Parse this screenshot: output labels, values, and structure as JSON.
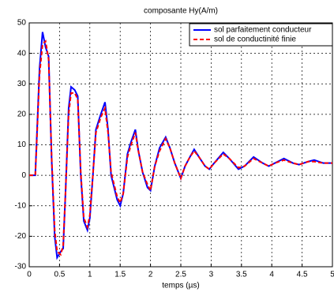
{
  "chart_data": {
    "type": "line",
    "title": "composante Hy(A/m)",
    "x_label": "temps (µs)",
    "x": [
      0,
      0.05,
      0.1,
      0.12,
      0.17,
      0.22,
      0.27,
      0.32,
      0.37,
      0.42,
      0.46,
      0.52,
      0.56,
      0.6,
      0.65,
      0.69,
      0.75,
      0.8,
      0.85,
      0.9,
      0.96,
      1.0,
      1.05,
      1.1,
      1.18,
      1.25,
      1.3,
      1.35,
      1.45,
      1.5,
      1.55,
      1.62,
      1.68,
      1.75,
      1.8,
      1.87,
      1.95,
      2.0,
      2.07,
      2.15,
      2.25,
      2.32,
      2.4,
      2.5,
      2.57,
      2.65,
      2.72,
      2.8,
      2.9,
      2.97,
      3.05,
      3.2,
      3.3,
      3.45,
      3.55,
      3.7,
      3.85,
      3.95,
      4.05,
      4.2,
      4.35,
      4.45,
      4.6,
      4.7,
      4.85,
      5
    ],
    "series": [
      {
        "name": "sol parfaitement conducteur",
        "color": "#0000ff",
        "linestyle": "solid",
        "values": [
          0,
          0,
          0,
          10,
          35,
          47,
          42,
          39,
          5,
          -20,
          -27,
          -25,
          -24,
          -5,
          22,
          29,
          28,
          26,
          0,
          -15,
          -18,
          -14,
          0,
          15,
          20,
          24,
          15,
          0,
          -8,
          -10,
          -6,
          7,
          11,
          15,
          8,
          1,
          -4,
          -5,
          3,
          9,
          12.5,
          9,
          4,
          -1,
          3,
          6,
          8.5,
          6,
          3,
          2,
          4,
          7.5,
          5.5,
          2,
          3,
          6,
          4,
          3,
          4,
          5.5,
          4,
          3.5,
          4.5,
          5,
          4,
          4
        ]
      },
      {
        "name": "sol de conductinité finie",
        "color": "#ff0000",
        "linestyle": "dashed",
        "values": [
          0,
          0,
          0,
          9,
          33,
          43,
          44,
          38,
          6,
          -18,
          -25,
          -26,
          -23,
          -5,
          20,
          27,
          27,
          25,
          1,
          -14,
          -17,
          -13,
          0,
          14,
          19,
          22,
          14,
          1,
          -7,
          -9,
          -6,
          6,
          10,
          14,
          8,
          1,
          -3,
          -5,
          3,
          8,
          12,
          9,
          4,
          -1,
          3,
          6,
          8,
          6,
          3,
          2,
          4,
          7,
          5.5,
          2.5,
          3,
          5.5,
          4,
          3,
          4,
          5,
          4,
          3.5,
          4.5,
          4.5,
          4,
          4
        ]
      }
    ],
    "xlim": [
      0,
      5
    ],
    "xticks": [
      0,
      0.5,
      1,
      1.5,
      2,
      2.5,
      3,
      3.5,
      4,
      4.5,
      5
    ],
    "ylim": [
      -30,
      50
    ],
    "yticks": [
      -30,
      -20,
      -10,
      0,
      10,
      20,
      30,
      40,
      50
    ],
    "grid": true,
    "legend": "upper right"
  }
}
